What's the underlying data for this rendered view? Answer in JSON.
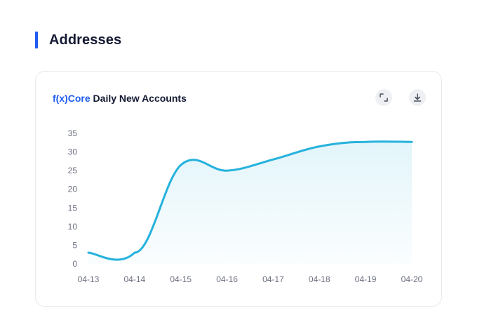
{
  "section": {
    "title": "Addresses"
  },
  "card": {
    "title_brand": "f(x)Core",
    "title_rest": " Daily New Accounts",
    "expand_icon": "expand-icon",
    "download_icon": "download-icon"
  },
  "colors": {
    "accent": "#1f5cf0",
    "line": "#25b2dc",
    "area": "#e8f6fc"
  },
  "chart_data": {
    "type": "area",
    "title": "f(x)Core Daily New Accounts",
    "xlabel": "",
    "ylabel": "",
    "x": [
      "04-13",
      "04-14",
      "04-15",
      "04-16",
      "04-17",
      "04-18",
      "04-19",
      "04-20"
    ],
    "series": [
      {
        "values": [
          3,
          3,
          26.5,
          25,
          28,
          31.5,
          32.7,
          32.7
        ]
      }
    ],
    "ylim": [
      0,
      35
    ],
    "yticks": [
      0,
      5,
      10,
      15,
      20,
      25,
      30,
      35
    ],
    "grid": false,
    "legend": "none"
  }
}
